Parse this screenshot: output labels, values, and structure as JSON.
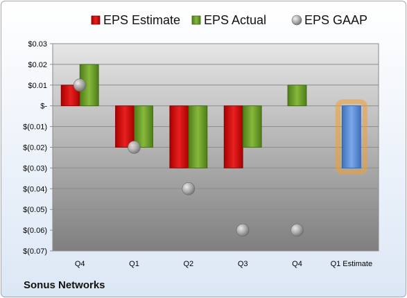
{
  "company": "Sonus Networks",
  "colors": {
    "estimate": "#cc1010",
    "actual": "#6a9c2a",
    "gaap": "#a8a8a8",
    "future_estimate": "#5b8fd6",
    "highlight": "#f0a030"
  },
  "chart_data": {
    "type": "bar",
    "categories": [
      "Q4",
      "Q1",
      "Q2",
      "Q3",
      "Q4",
      "Q1 Estimate"
    ],
    "series": [
      {
        "name": "EPS Estimate",
        "kind": "bar",
        "values": [
          0.01,
          -0.02,
          -0.03,
          -0.03,
          null,
          -0.03
        ]
      },
      {
        "name": "EPS Actual",
        "kind": "bar",
        "values": [
          0.02,
          -0.02,
          -0.03,
          -0.02,
          0.01,
          null
        ]
      },
      {
        "name": "EPS GAAP",
        "kind": "marker",
        "values": [
          0.01,
          -0.02,
          -0.04,
          -0.06,
          -0.06,
          null
        ]
      }
    ],
    "ylim": [
      -0.07,
      0.03
    ],
    "yticks": [
      0.03,
      0.02,
      0.01,
      0,
      -0.01,
      -0.02,
      -0.03,
      -0.04,
      -0.05,
      -0.06,
      -0.07
    ],
    "ytick_labels": [
      "$0.03",
      "$0.02",
      "$0.01",
      "$-",
      "$(0.01)",
      "$(0.02)",
      "$(0.03)",
      "$(0.04)",
      "$(0.05)",
      "$(0.06)",
      "$(0.07)"
    ],
    "grid": true,
    "legend": "top"
  }
}
